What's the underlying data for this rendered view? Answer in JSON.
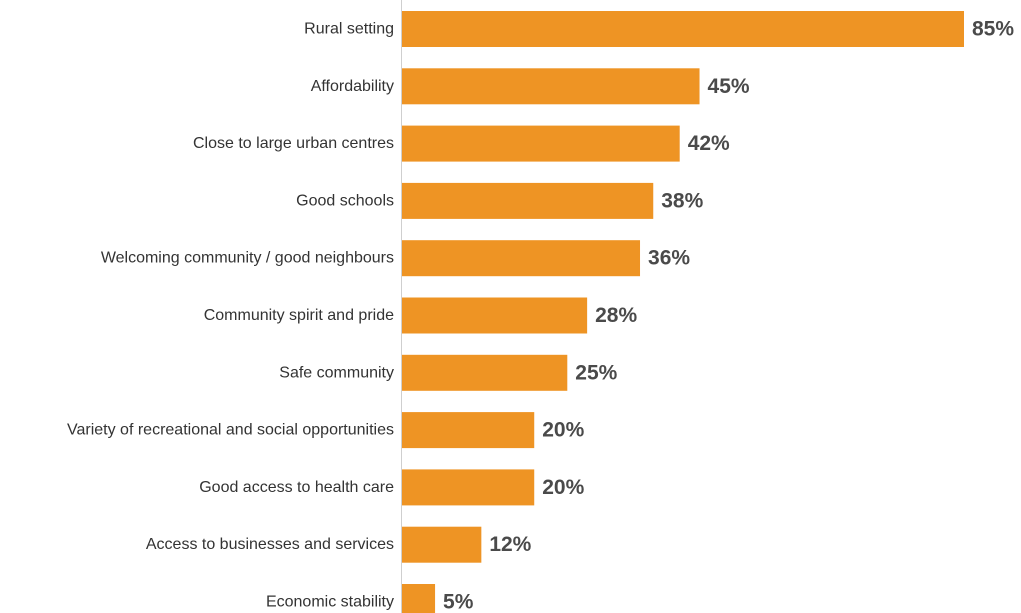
{
  "chart_data": {
    "type": "bar",
    "orientation": "horizontal",
    "categories": [
      "Rural setting",
      "Affordability",
      "Close to large urban centres",
      "Good schools",
      "Welcoming community / good neighbours",
      "Community spirit and pride",
      "Safe community",
      "Variety of recreational and social opportunities",
      "Good access to health care",
      "Access to businesses and services",
      "Economic stability"
    ],
    "values": [
      85,
      45,
      42,
      38,
      36,
      28,
      25,
      20,
      20,
      12,
      5
    ],
    "value_labels": [
      "85%",
      "45%",
      "42%",
      "38%",
      "36%",
      "28%",
      "25%",
      "20%",
      "20%",
      "12%",
      "5%"
    ],
    "xlim": [
      0,
      85
    ],
    "grid": false,
    "legend": "none",
    "bar_color": "#ee9424",
    "label_color": "#333333",
    "value_color": "#4a4a4a"
  }
}
